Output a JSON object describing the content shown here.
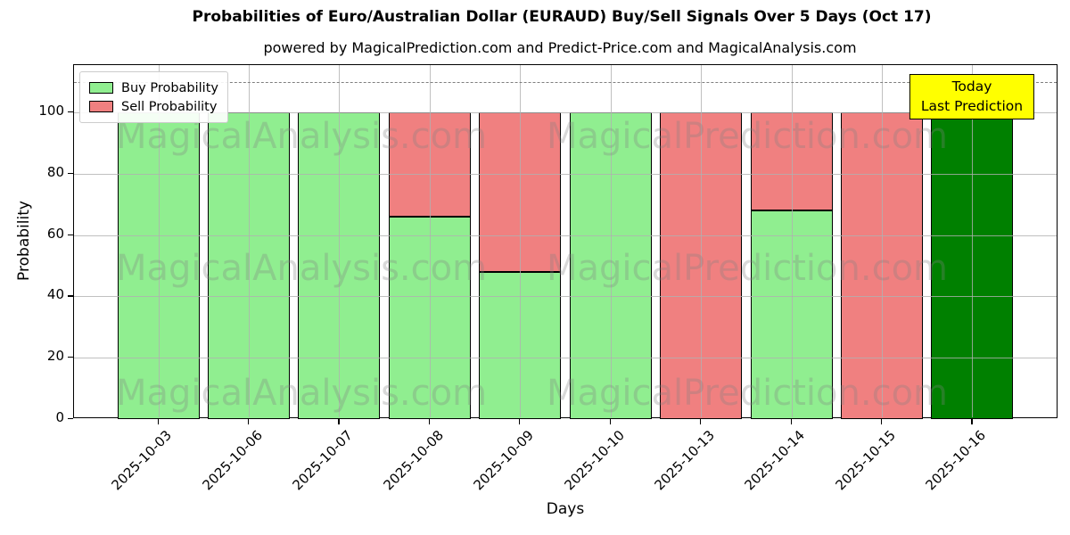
{
  "figure": {
    "title": "Probabilities of Euro/Australian Dollar (EURAUD) Buy/Sell Signals Over 5 Days (Oct 17)",
    "subtitle": "powered by MagicalPrediction.com and Predict-Price.com and MagicalAnalysis.com",
    "xlabel": "Days",
    "ylabel": "Probability"
  },
  "legend": {
    "items": [
      {
        "label": "Buy Probability",
        "color": "#90ee90"
      },
      {
        "label": "Sell Probability",
        "color": "#f08080"
      }
    ]
  },
  "annotation_box": {
    "lines": [
      "Today",
      "Last Prediction"
    ],
    "bg_color": "#ffff00"
  },
  "watermarks": {
    "left": "MagicalAnalysis.com",
    "right": "MagicalPrediction.com"
  },
  "colors": {
    "buy": "#90ee90",
    "sell": "#f08080",
    "today_buy": "#008000",
    "grid": "#b0b0b0",
    "dashed_line": "#7f7f7f",
    "annotation_bg": "#ffff00"
  },
  "chart_data": {
    "type": "bar",
    "stacked": true,
    "title": "Probabilities of Euro/Australian Dollar (EURAUD) Buy/Sell Signals Over 5 Days (Oct 17)",
    "xlabel": "Days",
    "ylabel": "Probability",
    "ylim": [
      0,
      115
    ],
    "yticks": [
      0,
      20,
      40,
      60,
      80,
      100
    ],
    "grid": true,
    "dashed_threshold_y": 110,
    "legend_position": "upper left",
    "categories": [
      "2025-10-03",
      "2025-10-06",
      "2025-10-07",
      "2025-10-08",
      "2025-10-09",
      "2025-10-10",
      "2025-10-13",
      "2025-10-14",
      "2025-10-15",
      "2025-10-16"
    ],
    "series": [
      {
        "name": "Buy Probability",
        "color": "#90ee90",
        "values": [
          100,
          100,
          100,
          66,
          48,
          100,
          0,
          68,
          0,
          100
        ]
      },
      {
        "name": "Sell Probability",
        "color": "#f08080",
        "values": [
          0,
          0,
          0,
          34,
          52,
          0,
          100,
          32,
          100,
          0
        ]
      }
    ],
    "today_index": 9,
    "today_color": "#008000"
  }
}
